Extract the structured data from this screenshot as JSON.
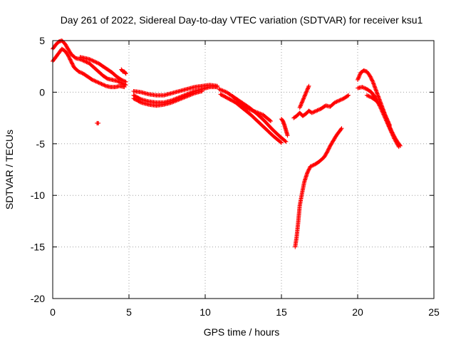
{
  "chart_data": {
    "type": "scatter",
    "title": "Day 261 of 2022, Sidereal Day-to-day VTEC variation (SDTVAR) for receiver ksu1",
    "xlabel": "GPS time / hours",
    "ylabel": "SDTVAR / TECUs",
    "xlim": [
      0,
      25
    ],
    "ylim": [
      -20,
      5
    ],
    "xticks": [
      0,
      5,
      10,
      15,
      20,
      25
    ],
    "yticks": [
      -20,
      -15,
      -10,
      -5,
      0,
      5
    ],
    "grid": true,
    "marker": "+",
    "color": "#ff0000",
    "series": [
      {
        "name": "track-a",
        "x": [
          0.0,
          0.2,
          0.4,
          0.6,
          0.8,
          1.0,
          1.2,
          1.5,
          1.8,
          2.1,
          2.4,
          2.7,
          3.0,
          3.3,
          3.6,
          3.9,
          4.2,
          4.5,
          4.8
        ],
        "y": [
          4.2,
          4.6,
          4.9,
          5.0,
          4.7,
          4.2,
          3.7,
          3.3,
          3.2,
          3.0,
          2.8,
          2.4,
          2.0,
          1.6,
          1.3,
          1.2,
          1.1,
          0.9,
          0.7
        ]
      },
      {
        "name": "track-b",
        "x": [
          0.0,
          0.2,
          0.4,
          0.6,
          0.8,
          1.0,
          1.2,
          1.4,
          1.7,
          2.0,
          2.3,
          2.6,
          2.9,
          3.2,
          3.5,
          3.8,
          4.1,
          4.4,
          4.7
        ],
        "y": [
          3.0,
          3.4,
          3.8,
          4.2,
          4.0,
          3.6,
          3.0,
          2.4,
          2.0,
          1.8,
          1.5,
          1.2,
          1.0,
          0.8,
          0.6,
          0.5,
          0.5,
          0.6,
          0.5
        ]
      },
      {
        "name": "track-c",
        "x": [
          1.8,
          2.1,
          2.4,
          2.7,
          3.0,
          3.3,
          3.6,
          3.9,
          4.2,
          4.5,
          4.8
        ],
        "y": [
          3.4,
          3.3,
          3.2,
          3.0,
          2.8,
          2.5,
          2.2,
          1.9,
          1.5,
          1.2,
          1.0
        ]
      },
      {
        "name": "track-d",
        "x": [
          4.5,
          4.6,
          4.7,
          4.8
        ],
        "y": [
          2.2,
          2.0,
          2.0,
          1.8
        ]
      },
      {
        "name": "outlier",
        "x": [
          2.9,
          3.0
        ],
        "y": [
          -3.0,
          -3.0
        ]
      },
      {
        "name": "track-e",
        "x": [
          5.3,
          5.8,
          6.3,
          6.8,
          7.3,
          7.8,
          8.3,
          8.8,
          9.3,
          9.8,
          10.3,
          10.8
        ],
        "y": [
          0.1,
          0.0,
          -0.2,
          -0.3,
          -0.3,
          -0.1,
          0.1,
          0.3,
          0.5,
          0.6,
          0.7,
          0.6
        ]
      },
      {
        "name": "track-f",
        "x": [
          5.3,
          5.8,
          6.3,
          6.8,
          7.3,
          7.8,
          8.3,
          8.8,
          9.3,
          9.8,
          10.3,
          10.8
        ],
        "y": [
          -0.3,
          -0.7,
          -0.9,
          -1.0,
          -1.0,
          -0.8,
          -0.5,
          -0.2,
          0.1,
          0.3,
          0.5,
          0.5
        ]
      },
      {
        "name": "track-g",
        "x": [
          5.3,
          5.8,
          6.3,
          6.8,
          7.3,
          7.8,
          8.3,
          8.8,
          9.3,
          9.8
        ],
        "y": [
          -0.6,
          -1.0,
          -1.2,
          -1.3,
          -1.2,
          -1.0,
          -0.7,
          -0.4,
          -0.1,
          0.1
        ]
      },
      {
        "name": "track-h",
        "x": [
          10.9,
          11.4,
          11.9,
          12.4,
          12.9,
          13.4,
          13.9,
          14.4,
          14.9,
          15.3
        ],
        "y": [
          0.3,
          0.0,
          -0.5,
          -1.0,
          -1.5,
          -2.1,
          -2.8,
          -3.6,
          -4.3,
          -4.8
        ]
      },
      {
        "name": "track-i",
        "x": [
          11.0,
          11.5,
          12.0,
          12.5,
          13.0,
          13.5,
          14.0,
          14.5,
          15.0
        ],
        "y": [
          -0.2,
          -0.6,
          -1.0,
          -1.6,
          -2.2,
          -2.9,
          -3.6,
          -4.3,
          -4.9
        ]
      },
      {
        "name": "track-j",
        "x": [
          11.8,
          12.3,
          12.8,
          13.3,
          13.8,
          14.3
        ],
        "y": [
          -0.4,
          -1.0,
          -1.6,
          -1.9,
          -2.2,
          -2.8
        ]
      },
      {
        "name": "track-k",
        "x": [
          15.0,
          15.1,
          15.2,
          15.3,
          15.4
        ],
        "y": [
          -2.6,
          -2.8,
          -3.2,
          -3.7,
          -4.2
        ]
      },
      {
        "name": "track-l",
        "x": [
          15.8,
          16.0,
          16.2,
          16.4,
          16.6,
          16.8,
          17.0,
          17.3,
          17.6,
          17.9,
          18.2,
          18.5,
          18.8,
          19.1,
          19.4
        ],
        "y": [
          -2.5,
          -2.3,
          -2.0,
          -2.3,
          -2.1,
          -1.8,
          -2.0,
          -1.8,
          -1.6,
          -1.3,
          -1.4,
          -1.0,
          -0.8,
          -0.6,
          -0.3
        ]
      },
      {
        "name": "track-m",
        "x": [
          16.2,
          16.4,
          16.6,
          16.8
        ],
        "y": [
          -1.5,
          -0.8,
          -0.1,
          0.6
        ]
      },
      {
        "name": "track-n",
        "x": [
          15.9,
          16.0,
          16.1,
          16.2,
          16.35,
          16.5,
          16.7,
          16.9,
          17.2,
          17.5,
          17.8,
          18.0,
          18.2,
          18.4,
          18.6,
          18.8,
          18.95
        ],
        "y": [
          -15.0,
          -14.0,
          -12.6,
          -11.0,
          -9.8,
          -8.7,
          -7.8,
          -7.2,
          -7.0,
          -6.7,
          -6.3,
          -5.8,
          -5.2,
          -4.7,
          -4.2,
          -3.8,
          -3.5
        ]
      },
      {
        "name": "track-o",
        "x": [
          20.0,
          20.2,
          20.4,
          20.6,
          20.8,
          21.0,
          21.2,
          21.4,
          21.6,
          21.8,
          22.0,
          22.2,
          22.4,
          22.6,
          22.8
        ],
        "y": [
          1.2,
          1.9,
          2.1,
          2.0,
          1.6,
          1.0,
          0.2,
          -0.6,
          -1.4,
          -2.2,
          -3.0,
          -3.7,
          -4.3,
          -4.8,
          -5.2
        ]
      },
      {
        "name": "track-p",
        "x": [
          20.0,
          20.3,
          20.6,
          20.9,
          21.2,
          21.5,
          21.8,
          22.1,
          22.4,
          22.7
        ],
        "y": [
          0.4,
          0.5,
          0.3,
          0.0,
          -0.6,
          -1.5,
          -2.5,
          -3.5,
          -4.5,
          -5.3
        ]
      },
      {
        "name": "track-q",
        "x": [
          20.6,
          20.9,
          21.2,
          21.5,
          21.8,
          22.1
        ],
        "y": [
          -0.3,
          -0.5,
          -0.8,
          -1.3,
          -2.2,
          -3.2
        ]
      }
    ]
  }
}
